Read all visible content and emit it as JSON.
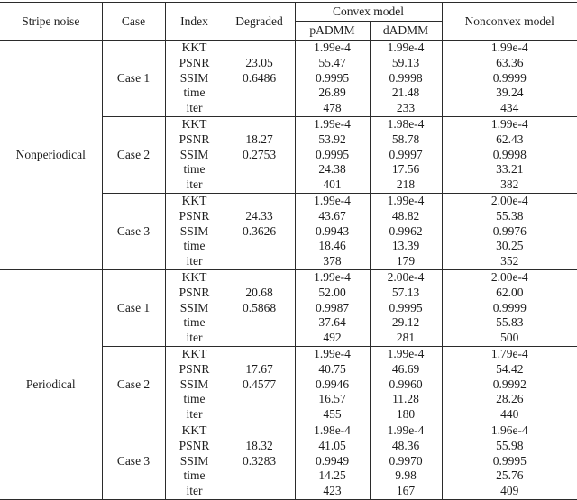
{
  "table": {
    "header": {
      "col_stripe_noise": "Stripe noise",
      "col_case": "Case",
      "col_index": "Index",
      "col_degraded": "Degraded",
      "col_convex_group": "Convex model",
      "col_padmm": "pADMM",
      "col_dadmm": "dADMM",
      "col_nonconvex": "Nonconvex model"
    },
    "index_labels": [
      "KKT",
      "PSNR",
      "SSIM",
      "time",
      "iter"
    ],
    "groups": [
      {
        "stripe_noise": "Nonperiodical",
        "cases": [
          {
            "case": "Case 1",
            "rows": [
              {
                "index": "KKT",
                "degraded": "",
                "padmm": "1.99e-4",
                "dadmm": "1.99e-4",
                "nonconvex": "1.99e-4"
              },
              {
                "index": "PSNR",
                "degraded": "23.05",
                "padmm": "55.47",
                "dadmm": "59.13",
                "nonconvex": "63.36"
              },
              {
                "index": "SSIM",
                "degraded": "0.6486",
                "padmm": "0.9995",
                "dadmm": "0.9998",
                "nonconvex": "0.9999"
              },
              {
                "index": "time",
                "degraded": "",
                "padmm": "26.89",
                "dadmm": "21.48",
                "nonconvex": "39.24"
              },
              {
                "index": "iter",
                "degraded": "",
                "padmm": "478",
                "dadmm": "233",
                "nonconvex": "434"
              }
            ]
          },
          {
            "case": "Case 2",
            "rows": [
              {
                "index": "KKT",
                "degraded": "",
                "padmm": "1.99e-4",
                "dadmm": "1.98e-4",
                "nonconvex": "1.99e-4"
              },
              {
                "index": "PSNR",
                "degraded": "18.27",
                "padmm": "53.92",
                "dadmm": "58.78",
                "nonconvex": "62.43"
              },
              {
                "index": "SSIM",
                "degraded": "0.2753",
                "padmm": "0.9995",
                "dadmm": "0.9997",
                "nonconvex": "0.9998"
              },
              {
                "index": "time",
                "degraded": "",
                "padmm": "24.38",
                "dadmm": "17.56",
                "nonconvex": "33.21"
              },
              {
                "index": "iter",
                "degraded": "",
                "padmm": "401",
                "dadmm": "218",
                "nonconvex": "382"
              }
            ]
          },
          {
            "case": "Case 3",
            "rows": [
              {
                "index": "KKT",
                "degraded": "",
                "padmm": "1.99e-4",
                "dadmm": "1.99e-4",
                "nonconvex": "2.00e-4"
              },
              {
                "index": "PSNR",
                "degraded": "24.33",
                "padmm": "43.67",
                "dadmm": "48.82",
                "nonconvex": "55.38"
              },
              {
                "index": "SSIM",
                "degraded": "0.3626",
                "padmm": "0.9943",
                "dadmm": "0.9962",
                "nonconvex": "0.9976"
              },
              {
                "index": "time",
                "degraded": "",
                "padmm": "18.46",
                "dadmm": "13.39",
                "nonconvex": "30.25"
              },
              {
                "index": "iter",
                "degraded": "",
                "padmm": "378",
                "dadmm": "179",
                "nonconvex": "352"
              }
            ]
          }
        ]
      },
      {
        "stripe_noise": "Periodical",
        "cases": [
          {
            "case": "Case 1",
            "rows": [
              {
                "index": "KKT",
                "degraded": "",
                "padmm": "1.99e-4",
                "dadmm": "2.00e-4",
                "nonconvex": "2.00e-4"
              },
              {
                "index": "PSNR",
                "degraded": "20.68",
                "padmm": "52.00",
                "dadmm": "57.13",
                "nonconvex": "62.00"
              },
              {
                "index": "SSIM",
                "degraded": "0.5868",
                "padmm": "0.9987",
                "dadmm": "0.9995",
                "nonconvex": "0.9999"
              },
              {
                "index": "time",
                "degraded": "",
                "padmm": "37.64",
                "dadmm": "29.12",
                "nonconvex": "55.83"
              },
              {
                "index": "iter",
                "degraded": "",
                "padmm": "492",
                "dadmm": "281",
                "nonconvex": "500"
              }
            ]
          },
          {
            "case": "Case 2",
            "rows": [
              {
                "index": "KKT",
                "degraded": "",
                "padmm": "1.99e-4",
                "dadmm": "1.99e-4",
                "nonconvex": "1.79e-4"
              },
              {
                "index": "PSNR",
                "degraded": "17.67",
                "padmm": "40.75",
                "dadmm": "46.69",
                "nonconvex": "54.42"
              },
              {
                "index": "SSIM",
                "degraded": "0.4577",
                "padmm": "0.9946",
                "dadmm": "0.9960",
                "nonconvex": "0.9992"
              },
              {
                "index": "time",
                "degraded": "",
                "padmm": "16.57",
                "dadmm": "11.28",
                "nonconvex": "28.26"
              },
              {
                "index": "iter",
                "degraded": "",
                "padmm": "455",
                "dadmm": "180",
                "nonconvex": "440"
              }
            ]
          },
          {
            "case": "Case 3",
            "rows": [
              {
                "index": "KKT",
                "degraded": "",
                "padmm": "1.98e-4",
                "dadmm": "1.99e-4",
                "nonconvex": "1.96e-4"
              },
              {
                "index": "PSNR",
                "degraded": "18.32",
                "padmm": "41.05",
                "dadmm": "48.36",
                "nonconvex": "55.98"
              },
              {
                "index": "SSIM",
                "degraded": "0.3283",
                "padmm": "0.9949",
                "dadmm": "0.9970",
                "nonconvex": "0.9995"
              },
              {
                "index": "time",
                "degraded": "",
                "padmm": "14.25",
                "dadmm": "9.98",
                "nonconvex": "25.76"
              },
              {
                "index": "iter",
                "degraded": "",
                "padmm": "423",
                "dadmm": "167",
                "nonconvex": "409"
              }
            ]
          }
        ]
      }
    ],
    "line_color": "#2b2b2b",
    "text_color": "#1c1c1c"
  }
}
